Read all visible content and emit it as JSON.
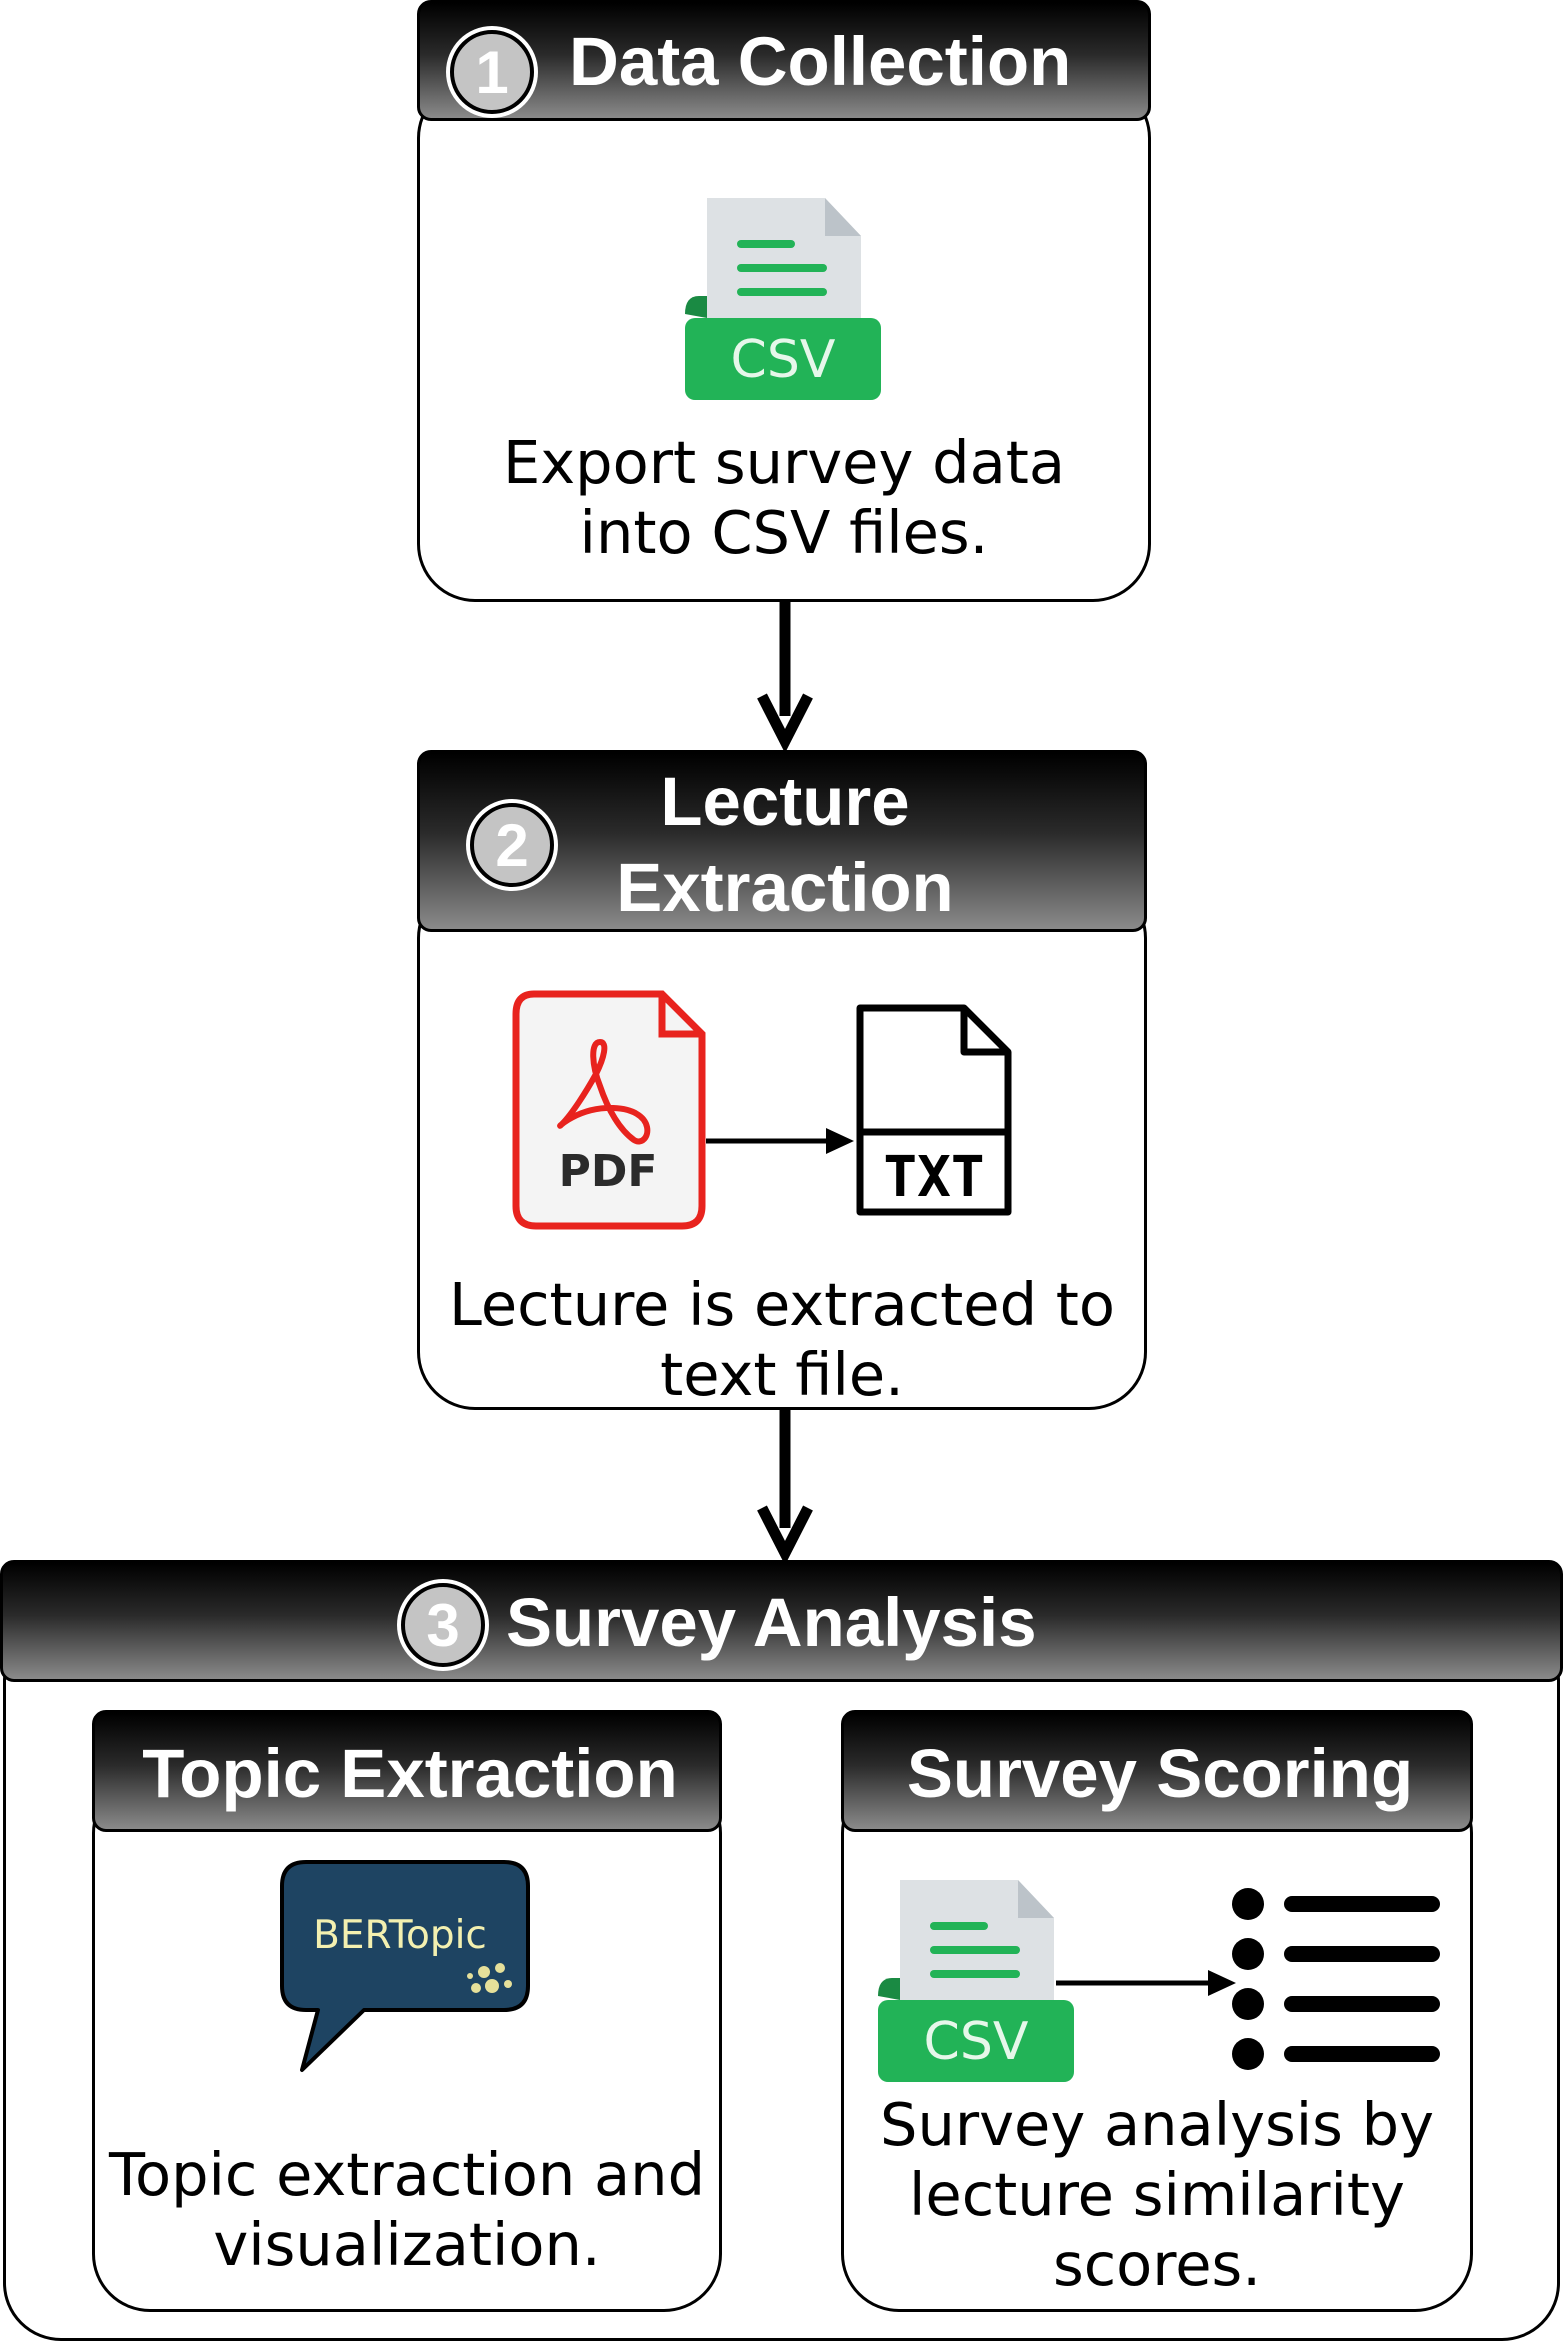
{
  "steps": [
    {
      "number": "1",
      "title": "Data Collection",
      "icon_label": "CSV",
      "description": [
        "Export survey data",
        "into CSV files."
      ]
    },
    {
      "number": "2",
      "title": [
        "Lecture",
        "Extraction"
      ],
      "pdf_label": "PDF",
      "txt_label": "TXT",
      "description": [
        "Lecture is extracted to",
        "text file."
      ]
    },
    {
      "number": "3",
      "title": "Survey Analysis",
      "topic": {
        "title": "Topic Extraction",
        "logo_text": "BERTopic",
        "description": [
          "Topic extraction and",
          "visualization."
        ]
      },
      "scoring": {
        "title": "Survey Scoring",
        "icon_label": "CSV",
        "description": [
          "Survey analysis by",
          "lecture similarity",
          "scores."
        ]
      }
    }
  ],
  "colors": {
    "csv_green": "#22b357",
    "doc_gray": "#dde1e4",
    "pdf_red": "#e8231e",
    "bertopic_navy": "#1e4462",
    "bertopic_text": "#f3f0b0"
  }
}
